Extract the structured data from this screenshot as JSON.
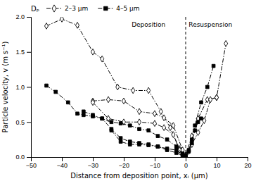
{
  "chart_data": {
    "type": "line",
    "xlabel": "Distance from deposition point, xᵢ (μm)",
    "ylabel": "Particle velocity, v (m s⁻¹)",
    "xlim": [
      -50,
      20
    ],
    "ylim": [
      0,
      2.0
    ],
    "xticks": [
      {
        "value": -50,
        "label": "−50"
      },
      {
        "value": -40,
        "label": "−40"
      },
      {
        "value": -30,
        "label": "−30"
      },
      {
        "value": -20,
        "label": "−20"
      },
      {
        "value": -10,
        "label": "−10"
      },
      0,
      10,
      20
    ],
    "yticks": [
      {
        "value": 0,
        "label": "0.0"
      },
      0.5,
      {
        "value": 1,
        "label": "1.0"
      },
      1.5,
      {
        "value": 2,
        "label": "2.0"
      }
    ],
    "grid": false,
    "legend": "top",
    "legend_title": "Dₚ",
    "legend_entries": [
      {
        "name": "2–3 μm",
        "marker": "open-diamond",
        "line_style": "dashdot",
        "color": "black"
      },
      {
        "name": "4–5 μm",
        "marker": "filled-square",
        "line_style": "dashdot",
        "color": "black"
      }
    ],
    "annotations": [
      {
        "text": "Deposition",
        "x": -12,
        "y": 1.93
      },
      {
        "text": "Resuspension",
        "x": 8,
        "y": 1.93
      }
    ],
    "reference_lines": [
      {
        "x": 0,
        "line_style": "dashed",
        "color": "black"
      }
    ],
    "series": [
      {
        "marker": "open-diamond",
        "line_style": "dashdot",
        "color": "black",
        "x": [
          -45,
          -40,
          -35,
          -30,
          -27,
          -22,
          -17,
          -12,
          -8,
          -5,
          -2,
          0
        ],
        "values": [
          1.87,
          1.97,
          1.88,
          1.5,
          1.4,
          1.0,
          0.95,
          0.95,
          0.65,
          0.42,
          0.12,
          0.02
        ]
      },
      {
        "marker": "open-diamond",
        "line_style": "dashdot",
        "color": "black",
        "x": [
          -30,
          -25,
          -20,
          -15,
          -10,
          -7,
          -4,
          -1,
          0
        ],
        "values": [
          0.8,
          0.82,
          0.8,
          0.65,
          0.62,
          0.56,
          0.45,
          0.1,
          0.02
        ]
      },
      {
        "marker": "open-diamond",
        "line_style": "dashdot",
        "color": "black",
        "x": [
          -30,
          -25,
          -20,
          -15,
          -10,
          -7,
          -4,
          -2,
          0
        ],
        "values": [
          0.78,
          0.55,
          0.5,
          0.5,
          0.48,
          0.42,
          0.32,
          0.1,
          0.02
        ]
      },
      {
        "marker": "open-diamond",
        "line_style": "dashdot",
        "color": "black",
        "x": [
          0,
          2,
          4,
          7,
          10,
          13
        ],
        "values": [
          0.02,
          0.3,
          0.55,
          0.82,
          0.85,
          1.62
        ]
      },
      {
        "marker": "open-diamond",
        "line_style": "dashdot",
        "color": "black",
        "x": [
          0,
          1,
          2,
          4,
          6,
          8,
          10
        ],
        "values": [
          0.02,
          0.08,
          0.18,
          0.35,
          0.52,
          0.82,
          0.85
        ]
      },
      {
        "marker": "filled-square",
        "line_style": "dashdot",
        "color": "black",
        "x": [
          -45,
          -42,
          -38,
          -35,
          -33,
          -30,
          -27,
          -24,
          -21,
          -18,
          -15,
          -12,
          -9,
          -6,
          -3,
          -1,
          0
        ],
        "values": [
          1.02,
          0.93,
          0.78,
          0.62,
          0.6,
          0.58,
          0.55,
          0.4,
          0.27,
          0.22,
          0.2,
          0.18,
          0.15,
          0.1,
          0.06,
          0.02,
          0.01
        ]
      },
      {
        "marker": "filled-square",
        "line_style": "dashdot",
        "color": "black",
        "x": [
          -33,
          -30,
          -27,
          -24,
          -21,
          -18,
          -15,
          -12,
          -9,
          -6,
          -3,
          -1,
          0
        ],
        "values": [
          0.65,
          0.6,
          0.55,
          0.5,
          0.48,
          0.45,
          0.4,
          0.38,
          0.3,
          0.25,
          0.15,
          0.05,
          0.02
        ]
      },
      {
        "marker": "filled-square",
        "line_style": "dashdot",
        "color": "black",
        "x": [
          -24,
          -21,
          -18,
          -15,
          -12,
          -9,
          -6,
          -3,
          -1,
          0
        ],
        "values": [
          0.38,
          0.22,
          0.18,
          0.18,
          0.17,
          0.15,
          0.12,
          0.1,
          0.04,
          0.02
        ]
      },
      {
        "marker": "filled-square",
        "line_style": "dashdot",
        "color": "black",
        "x": [
          0,
          1,
          2,
          3,
          5,
          7,
          9
        ],
        "values": [
          0.02,
          0.1,
          0.25,
          0.45,
          0.78,
          1.0,
          1.3
        ]
      },
      {
        "marker": "filled-square",
        "line_style": "dashdot",
        "color": "black",
        "x": [
          0,
          1,
          2,
          3,
          4,
          5
        ],
        "values": [
          0.02,
          0.08,
          0.2,
          0.38,
          0.5,
          0.55
        ]
      }
    ]
  }
}
